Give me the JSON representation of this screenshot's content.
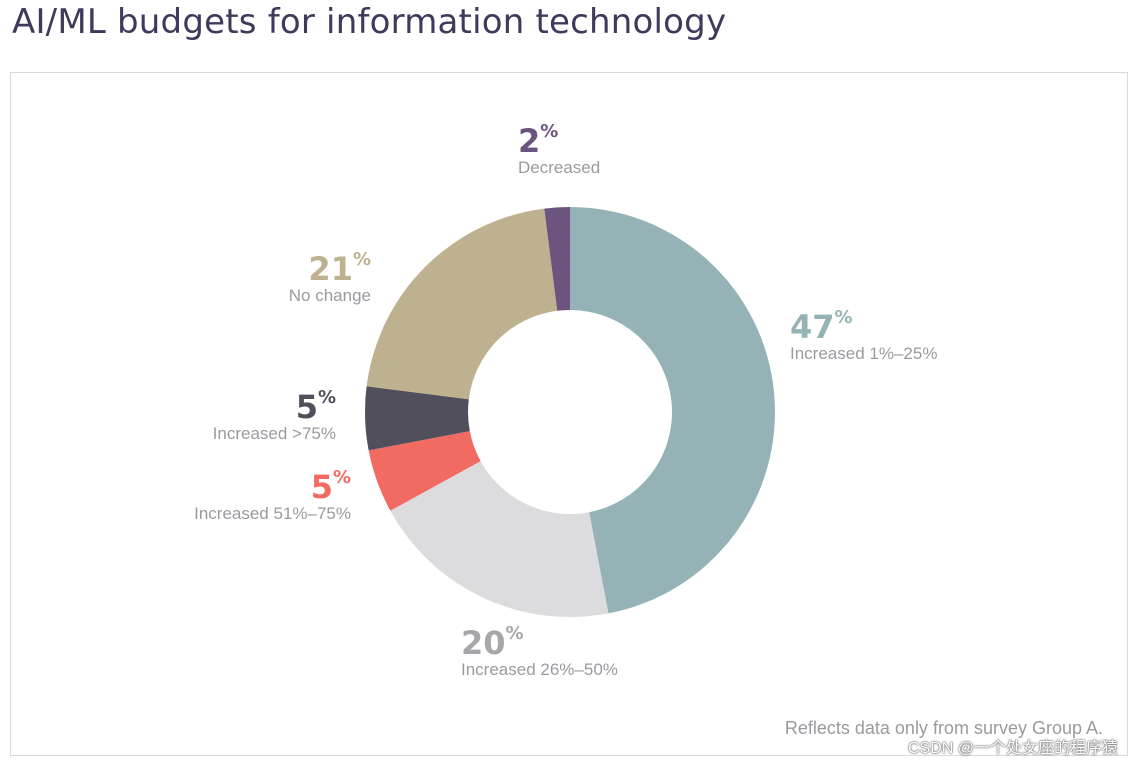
{
  "page_title": "AI/ML budgets for information technology",
  "footnote": "Reflects data only from survey Group A.",
  "watermark": "CSDN @一个处女座的程序猿",
  "chart_data": {
    "type": "pie",
    "title": "AI/ML budgets for information technology",
    "donut": true,
    "categories": [
      "Increased 1%–25%",
      "Increased 26%–50%",
      "Increased 51%–75%",
      "Increased >75%",
      "No change",
      "Decreased"
    ],
    "values": [
      47,
      20,
      5,
      5,
      21,
      2
    ],
    "colors": [
      "#95b3b6",
      "#dcdcde",
      "#f26b63",
      "#524f5c",
      "#bdb18f",
      "#6b557f"
    ],
    "value_labels": [
      {
        "value": "47",
        "unit": "%",
        "text": "Increased 1%–25%"
      },
      {
        "value": "20",
        "unit": "%",
        "text": "Increased 26%–50%"
      },
      {
        "value": "5",
        "unit": "%",
        "text": "Increased 51%–75%"
      },
      {
        "value": "5",
        "unit": "%",
        "text": "Increased >75%"
      },
      {
        "value": "21",
        "unit": "%",
        "text": "No change"
      },
      {
        "value": "2",
        "unit": "%",
        "text": "Decreased"
      }
    ]
  }
}
